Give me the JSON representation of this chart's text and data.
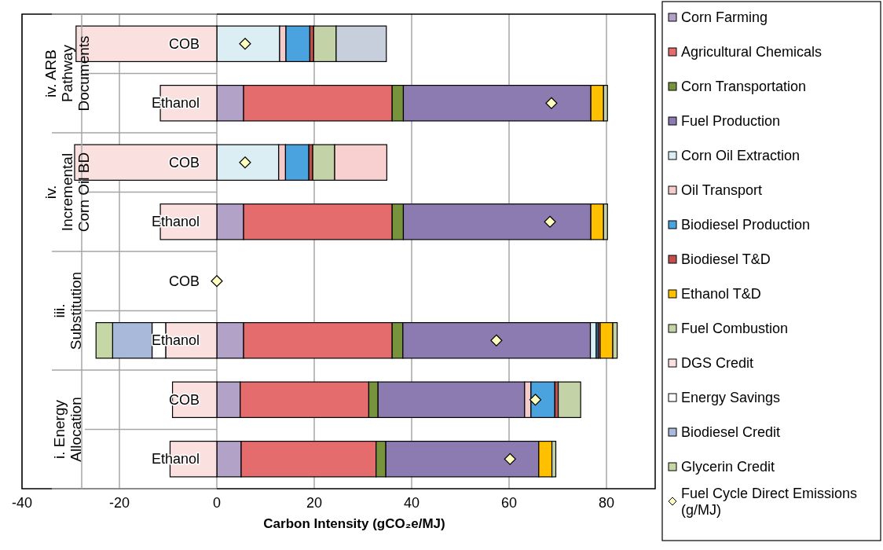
{
  "chart_data": {
    "type": "bar",
    "orientation": "horizontal",
    "stacked": true,
    "xlabel": "Carbon Intensity (gCO₂e/MJ)",
    "categories": [
      "COB",
      "Ethanol",
      "COB",
      "Ethanol",
      "COB",
      "Ethanol",
      "COB",
      "Ethanol"
    ],
    "annotations": [
      "iv. ARB Pathway Documents",
      "iv. Incremental Corn Oil BD",
      "iii. Substitution",
      "i. Energy Allocation"
    ],
    "xlim": [
      -40,
      90
    ],
    "xticks": [
      -40,
      -20,
      0,
      20,
      40,
      60,
      80
    ],
    "grid": "x",
    "legend": "right",
    "series": [
      {
        "name": "Corn Farming",
        "color": "#b3a2c7",
        "values": [
          null,
          5.5,
          null,
          5.5,
          null,
          5.5,
          4.8,
          5.0
        ]
      },
      {
        "name": "Agricultural Chemicals",
        "color": "#e46c6c",
        "values": [
          null,
          30.5,
          null,
          30.5,
          null,
          30.5,
          26.4,
          27.7
        ]
      },
      {
        "name": "Corn Transportation",
        "color": "#77933c",
        "values": [
          null,
          2.3,
          null,
          2.3,
          null,
          2.2,
          1.9,
          2.0
        ]
      },
      {
        "name": "Fuel Production",
        "color": "#8b7bb0",
        "values": [
          null,
          38.5,
          null,
          38.5,
          null,
          38.5,
          30.1,
          31.4
        ]
      },
      {
        "name": "Corn Oil Extraction",
        "color": "#dbeef4",
        "values": [
          12.9,
          null,
          12.7,
          null,
          null,
          1.2,
          null,
          null
        ]
      },
      {
        "name": "Oil Transport",
        "color": "#f4cccc",
        "values": [
          1.3,
          null,
          1.4,
          null,
          null,
          null,
          1.3,
          null
        ]
      },
      {
        "name": "Biodiesel Production",
        "color": "#4aa3df",
        "values": [
          4.9,
          null,
          4.8,
          null,
          null,
          0.4,
          4.9,
          null
        ]
      },
      {
        "name": "Biodiesel T&D",
        "color": "#c0504d",
        "values": [
          0.8,
          null,
          0.8,
          null,
          null,
          0.4,
          0.7,
          null
        ]
      },
      {
        "name": "Ethanol T&D",
        "color": "#ffc000",
        "values": [
          null,
          2.6,
          null,
          2.6,
          null,
          2.6,
          null,
          2.7
        ]
      },
      {
        "name": "Fuel Combustion",
        "color": "#c4d3a7",
        "values": [
          4.6,
          0.8,
          4.5,
          0.8,
          null,
          0.9,
          4.6,
          0.8
        ]
      },
      {
        "color": "#c8cfdc",
        "values": [
          10.3,
          null,
          null,
          null,
          null,
          null,
          null,
          null
        ]
      },
      {
        "color": "#f8d0d0",
        "values": [
          null,
          null,
          10.7,
          null,
          null,
          null,
          null,
          null
        ]
      },
      {
        "name": "DGS Credit",
        "color": "#fbe0e0",
        "values": [
          -28.9,
          -11.6,
          -29.2,
          -11.6,
          null,
          -10.5,
          -9.1,
          -9.6
        ]
      },
      {
        "name": "Energy Savings",
        "color": "#ffffff",
        "values": [
          null,
          null,
          null,
          null,
          null,
          -2.8,
          null,
          null
        ]
      },
      {
        "name": "Biodiesel Credit",
        "color": "#a9b9d9",
        "values": [
          null,
          null,
          null,
          null,
          null,
          -8.1,
          null,
          null
        ]
      },
      {
        "name": "Glycerin Credit",
        "color": "#c4d7a4",
        "values": [
          null,
          null,
          null,
          null,
          null,
          -3.4,
          null,
          null
        ]
      },
      {
        "name": "Fuel Cycle Direct Emissions (g/MJ)",
        "type": "scatter",
        "marker": "diamond",
        "color": "#ffffc0",
        "values": [
          5.8,
          68.7,
          5.8,
          68.4,
          0,
          57.4,
          65.4,
          60.2
        ]
      }
    ]
  }
}
